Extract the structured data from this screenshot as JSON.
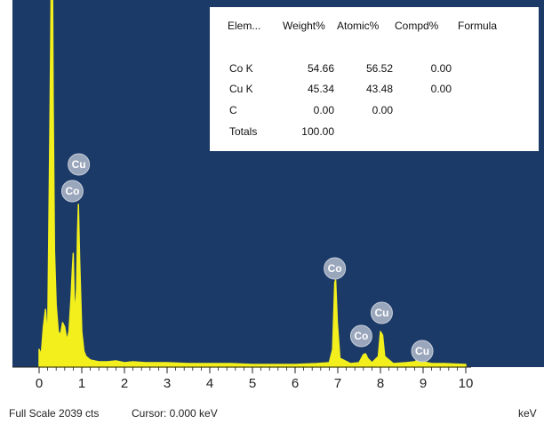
{
  "chart_data": {
    "type": "line",
    "title": "",
    "xlabel": "keV",
    "ylabel": "",
    "xlim": [
      0,
      10
    ],
    "x_ticks": [
      "0",
      "1",
      "2",
      "3",
      "4",
      "5",
      "6",
      "7",
      "8",
      "9",
      "10"
    ],
    "grid": false,
    "colors": {
      "plot_background": "#1b3a68",
      "spectrum": "#f2ef1c",
      "peak_marker": "#9aa6bb"
    },
    "series": [
      {
        "points": [
          [
            0.0,
            20
          ],
          [
            0.05,
            14
          ],
          [
            0.1,
            45
          ],
          [
            0.15,
            65
          ],
          [
            0.2,
            30
          ],
          [
            0.25,
            255
          ],
          [
            0.27,
            360
          ],
          [
            0.29,
            470
          ],
          [
            0.31,
            470
          ],
          [
            0.33,
            300
          ],
          [
            0.36,
            130
          ],
          [
            0.4,
            70
          ],
          [
            0.45,
            40
          ],
          [
            0.5,
            36
          ],
          [
            0.55,
            50
          ],
          [
            0.6,
            45
          ],
          [
            0.65,
            30
          ],
          [
            0.7,
            40
          ],
          [
            0.75,
            80
          ],
          [
            0.78,
            110
          ],
          [
            0.8,
            128
          ],
          [
            0.82,
            80
          ],
          [
            0.85,
            60
          ],
          [
            0.88,
            90
          ],
          [
            0.9,
            150
          ],
          [
            0.92,
            183
          ],
          [
            0.95,
            120
          ],
          [
            1.0,
            40
          ],
          [
            1.05,
            18
          ],
          [
            1.1,
            12
          ],
          [
            1.2,
            8
          ],
          [
            1.4,
            6
          ],
          [
            1.6,
            6
          ],
          [
            1.8,
            7
          ],
          [
            2.0,
            5
          ],
          [
            2.2,
            6
          ],
          [
            2.5,
            5
          ],
          [
            3.0,
            5
          ],
          [
            3.5,
            4
          ],
          [
            4.0,
            4
          ],
          [
            4.5,
            4
          ],
          [
            5.0,
            3
          ],
          [
            5.5,
            3
          ],
          [
            6.0,
            3
          ],
          [
            6.5,
            4
          ],
          [
            6.8,
            5
          ],
          [
            6.88,
            20
          ],
          [
            6.93,
            95
          ],
          [
            6.95,
            98
          ],
          [
            6.99,
            50
          ],
          [
            7.05,
            10
          ],
          [
            7.3,
            4
          ],
          [
            7.5,
            5
          ],
          [
            7.6,
            14
          ],
          [
            7.65,
            15
          ],
          [
            7.7,
            10
          ],
          [
            7.8,
            5
          ],
          [
            7.95,
            12
          ],
          [
            8.0,
            40
          ],
          [
            8.05,
            36
          ],
          [
            8.1,
            12
          ],
          [
            8.3,
            4
          ],
          [
            8.6,
            5
          ],
          [
            8.8,
            6
          ],
          [
            8.9,
            9
          ],
          [
            9.0,
            6
          ],
          [
            9.2,
            4
          ],
          [
            9.5,
            4
          ],
          [
            10.0,
            3
          ]
        ]
      }
    ],
    "peak_markers": [
      {
        "label": "Cu",
        "x": 0.93,
        "y": 228
      },
      {
        "label": "Co",
        "x": 0.78,
        "y": 198
      },
      {
        "label": "Co",
        "x": 6.93,
        "y": 111
      },
      {
        "label": "Cu",
        "x": 8.03,
        "y": 61
      },
      {
        "label": "Co",
        "x": 7.55,
        "y": 35
      },
      {
        "label": "Cu",
        "x": 8.98,
        "y": 18
      }
    ],
    "ylim": [
      0,
      410
    ]
  },
  "results_table": {
    "headers": [
      "Elem...",
      "Weight%",
      "Atomic%",
      "Compd%",
      "Formula"
    ],
    "rows": [
      {
        "element": "Co K",
        "weight": "54.66",
        "atomic": "56.52",
        "compd": "0.00",
        "formula": ""
      },
      {
        "element": "Cu K",
        "weight": "45.34",
        "atomic": "43.48",
        "compd": "0.00",
        "formula": ""
      },
      {
        "element": "C",
        "weight": "0.00",
        "atomic": "0.00",
        "compd": "",
        "formula": ""
      }
    ],
    "total_label": "Totals",
    "total_value": "100.00"
  },
  "footer": {
    "full_scale": "Full Scale 2039 cts",
    "cursor": "Cursor: 0.000 keV",
    "unit": "keV"
  }
}
